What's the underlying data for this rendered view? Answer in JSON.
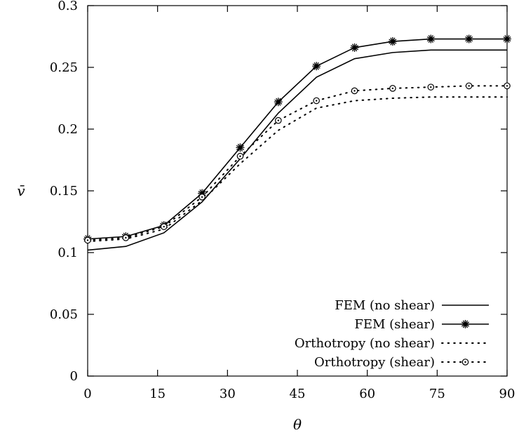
{
  "chart_data": {
    "type": "line",
    "title": "",
    "xlabel": "θ",
    "ylabel": "v̄",
    "xlim": [
      0,
      90
    ],
    "ylim": [
      0,
      0.3
    ],
    "xticks": [
      0,
      15,
      30,
      45,
      60,
      75,
      90
    ],
    "xtick_labels": [
      "0",
      "15",
      "30",
      "45",
      "60",
      "75",
      "90"
    ],
    "yticks": [
      0,
      0.05,
      0.1,
      0.15,
      0.2,
      0.25,
      0.3
    ],
    "ytick_labels": [
      "0",
      "0.05",
      "0.1",
      "0.15",
      "0.2",
      "0.25",
      "0.3"
    ],
    "grid": false,
    "legend_position": "bottom-right",
    "series": [
      {
        "name": "FEM (no shear)",
        "style": "solid",
        "marker": "none",
        "x": [
          0,
          8.18,
          16.36,
          24.55,
          32.73,
          40.91,
          49.09,
          57.27,
          65.45,
          73.64,
          81.82,
          90
        ],
        "y": [
          0.102,
          0.105,
          0.116,
          0.141,
          0.176,
          0.213,
          0.242,
          0.257,
          0.262,
          0.264,
          0.264,
          0.264
        ]
      },
      {
        "name": "FEM (shear)",
        "style": "solid",
        "marker": "star",
        "x": [
          0,
          8.18,
          16.36,
          24.55,
          32.73,
          40.91,
          49.09,
          57.27,
          65.45,
          73.64,
          81.82,
          90
        ],
        "y": [
          0.111,
          0.113,
          0.122,
          0.148,
          0.185,
          0.222,
          0.251,
          0.266,
          0.271,
          0.273,
          0.273,
          0.273
        ]
      },
      {
        "name": "Orthotropy (no shear)",
        "style": "dotted",
        "marker": "none",
        "x": [
          0,
          8.18,
          16.36,
          24.55,
          32.73,
          40.91,
          49.09,
          57.27,
          65.45,
          73.64,
          81.82,
          90
        ],
        "y": [
          0.109,
          0.111,
          0.119,
          0.142,
          0.172,
          0.199,
          0.217,
          0.223,
          0.225,
          0.226,
          0.226,
          0.226
        ]
      },
      {
        "name": "Orthotropy (shear)",
        "style": "dotted",
        "marker": "circle",
        "x": [
          0,
          8.18,
          16.36,
          24.55,
          32.73,
          40.91,
          49.09,
          57.27,
          65.45,
          73.64,
          81.82,
          90
        ],
        "y": [
          0.11,
          0.112,
          0.121,
          0.145,
          0.178,
          0.207,
          0.223,
          0.231,
          0.233,
          0.234,
          0.235,
          0.235
        ]
      }
    ]
  }
}
